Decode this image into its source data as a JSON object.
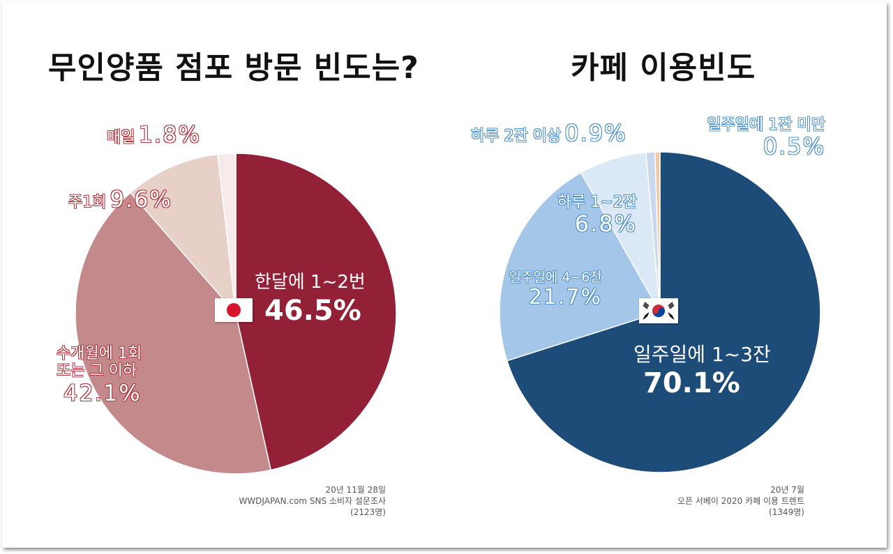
{
  "chart_data": [
    {
      "type": "pie",
      "title": "무인양품 점포 방문 빈도는?",
      "labels": [
        "한달에 1~2번",
        "수개월에 1회 또는 그 이하",
        "주1회",
        "매일"
      ],
      "values": [
        46.5,
        42.1,
        9.6,
        1.8
      ],
      "value_labels": [
        "46.5%",
        "42.1%",
        "9.6%",
        "1.8%"
      ],
      "colors": [
        "#922137",
        "#c4898a",
        "#e6d0c8",
        "#f6ebea"
      ],
      "flag": "japan-flag-icon",
      "source": [
        "20년 11월 28일",
        "WWDJAPAN.com SNS 소비자 설문조사",
        "(2123명)"
      ]
    },
    {
      "type": "pie",
      "title": "카페 이용빈도",
      "labels": [
        "일주일에 1~3잔",
        "일주일에 4~6잔",
        "하루 1~2잔",
        "하루 2잔 이상",
        "일주일에 1잔 미만"
      ],
      "values": [
        70.1,
        21.7,
        6.8,
        0.9,
        0.5
      ],
      "value_labels": [
        "70.1%",
        "21.7%",
        "6.8%",
        "0.9%",
        "0.5%"
      ],
      "colors": [
        "#1e4c78",
        "#a4c6e8",
        "#dbe8f5",
        "#c9d8ec",
        "#f2c9a6"
      ],
      "flag": "korea-flag-icon",
      "source": [
        "20년 7월",
        "오픈 서베이 2020 카페 이용 트렌트",
        "(1349명)"
      ]
    }
  ],
  "left_labels": {
    "monthly": {
      "text": "한달에 1~2번",
      "pct": "46.5%"
    },
    "rare": {
      "line1": "수개월에 1회",
      "line2": "또는 그 이하",
      "pct": "42.1%"
    },
    "weekly": {
      "text": "주1회",
      "pct": "9.6%"
    },
    "daily": {
      "text": "매일",
      "pct": "1.8%"
    }
  },
  "right_labels": {
    "w13": {
      "text": "일주일에 1~3잔",
      "pct": "70.1%"
    },
    "w46": {
      "text": "일주일에 4~6잔",
      "pct": "21.7%"
    },
    "d12": {
      "text": "하루 1~2잔",
      "pct": "6.8%"
    },
    "d2": {
      "text": "하루 2잔 이상",
      "pct": "0.9%"
    },
    "w1": {
      "text": "일주일에 1잔 미만",
      "pct": "0.5%"
    }
  }
}
